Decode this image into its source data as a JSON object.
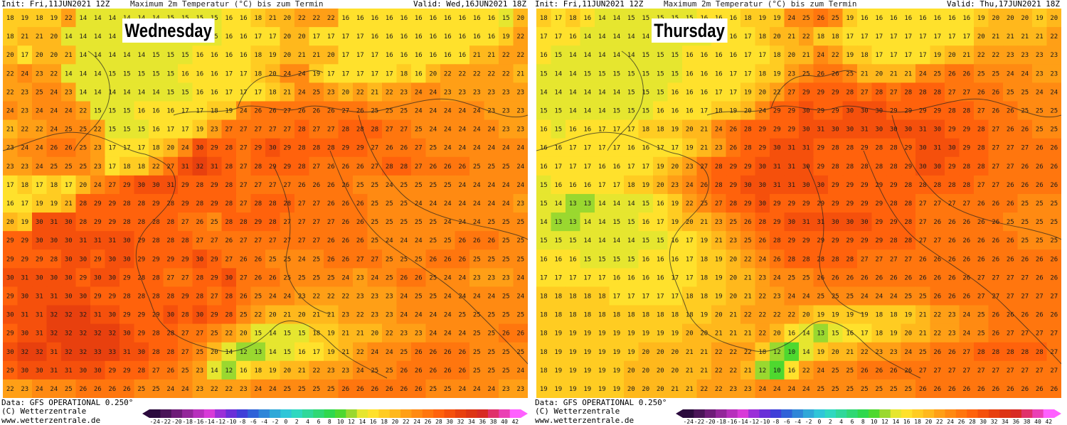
{
  "panels": [
    {
      "init": "Init: Fri,11JUN2021 12Z",
      "title": "Maximum 2m Temperatur (°C) bis zum Termin",
      "valid": "Valid: Wed,16JUN2021 18Z",
      "day_label": "Wednesday",
      "data_line": "Data: GFS OPERATIONAL 0.250°",
      "copyright": "(C) Wetterzentrale",
      "url": "www.wetterzentrale.de"
    },
    {
      "init": "Init: Fri,11JUN2021 12Z",
      "title": "Maximum 2m Temperatur (°C) bis zum Termin",
      "valid": "Valid: Thu,17JUN2021 18Z",
      "day_label": "Thursday",
      "data_line": "Data: GFS OPERATIONAL 0.250°",
      "copyright": "(C) Wetterzentrale",
      "url": "www.wetterzentrale.de"
    }
  ],
  "legend": {
    "ticks": [
      "-24",
      "-22",
      "-20",
      "-18",
      "-16",
      "-14",
      "-12",
      "-10",
      "-8",
      "-6",
      "-4",
      "-2",
      "0",
      "2",
      "4",
      "6",
      "8",
      "10",
      "12",
      "14",
      "16",
      "18",
      "20",
      "22",
      "24",
      "26",
      "28",
      "30",
      "32",
      "34",
      "36",
      "38",
      "40",
      "42"
    ],
    "colors": [
      "#2b0a3d",
      "#4a1458",
      "#6e1c78",
      "#93269a",
      "#b72fbc",
      "#d83ad8",
      "#9b2fd8",
      "#6a2fd8",
      "#3f3fd8",
      "#2f62d8",
      "#2f86d8",
      "#2fa8d8",
      "#2fc6d8",
      "#2fd8c0",
      "#2fd89a",
      "#2fd874",
      "#2fd84e",
      "#4ed82f",
      "#9ad82f",
      "#e6e62f",
      "#ffe12c",
      "#ffcc22",
      "#ffb81c",
      "#ff9f16",
      "#ff8a12",
      "#ff760e",
      "#ff620c",
      "#f5500c",
      "#e8400e",
      "#dd3414",
      "#d82a24",
      "#e0306a",
      "#ea40b4",
      "#ff60ff"
    ]
  },
  "map_data": [
    {
      "rows": [
        "18 19 18 19 22 14 14 14 14 14 14 15 15 15 15 16 16 18 21 20 22 22 22 16 16 16 16 16 16 16 16 16 16 16 15 20",
        "18 21 21 20 14 14 14 14 14 14 14 15 15 15 15 16 16 17 17 20 20 17 17 17 17 16 16 16 16 16 16 16 16 16 19 22",
        "20 17 20 20 21 14 14 14 14 14 15 15 15 16 16 16 16 18 19 20 21 21 20 17 17 17 16 16 16 16 16 16 21 21 22 22",
        "22 24 23 22 14 14 14 15 15 15 15 15 16 16 16 17 17 18 20 24 24 19 17 17 17 17 17 18 16 20 22 22 22 22 22 21",
        "22 23 25 24 23 14 14 14 14 14 14 15 15 16 16 17 17 17 18 21 24 25 23 20 22 21 22 23 24 24 23 23 23 23 23 23",
        "24 23 24 24 24 22 15 15 15 16 16 16 17 17 18 19 24 26 26 27 26 26 26 27 26 25 25 25 24 24 24 24 24 23 23 23",
        "21 22 22 24 25 25 22 15 15 15 16 17 17 19 23 27 27 27 27 27 28 27 27 28 28 28 27 27 25 24 24 24 24 24 23 23",
        "23 24 24 26 26 25 23 17 17 17 18 20 24 30 29 28 27 29 30 29 28 28 28 29 29 27 26 26 27 25 24 24 24 24 24 24",
        "23 23 24 25 25 25 23 17 18 18 22 27 31 32 31 28 27 28 29 29 28 27 26 26 26 27 28 28 27 26 26 26 25 25 25 24",
        "17 18 17 18 17 20 24 27 29 30 30 31 29 28 29 28 27 27 27 27 26 26 26 26 25 25 24 25 25 25 25 24 24 24 24 24",
        "16 17 19 19 21 28 29 29 28 28 29 28 29 28 29 28 27 28 28 28 27 27 26 26 26 25 25 25 24 24 24 24 24 24 24 23",
        "20 19 30 31 30 28 29 29 28 28 28 28 27 26 25 28 28 29 28 27 27 27 27 26 26 25 25 25 25 25 24 24 24 25 25 25",
        "29 29 30 30 30 31 31 31 30 29 28 28 28 27 27 26 27 27 27 27 27 27 26 26 26 25 24 24 24 25 25 26 26 26 25 25",
        "29 29 29 28 30 30 29 30 30 29 29 29 29 30 29 27 26 26 25 25 24 25 26 26 27 27 25 25 25 26 26 26 25 25 25 25",
        "30 31 30 30 30 29 30 30 29 28 28 27 27 28 29 30 27 26 26 25 25 25 25 24 23 24 25 26 26 25 24 24 23 23 23 24",
        "29 30 31 31 30 30 29 29 28 28 28 28 29 28 27 28 26 25 24 24 23 22 22 22 23 23 23 24 25 25 24 24 24 24 25 24",
        "30 31 31 32 32 32 31 30 29 29 29 30 28 30 29 28 25 22 20 21 20 21 21 23 22 23 23 24 24 24 24 25 25 25 25 25",
        "29 30 31 32 32 32 32 32 30 29 28 28 27 27 25 22 20 15 14 15 15 18 19 21 21 20 22 23 23 24 24 24 25 25 26 26",
        "30 32 32 31 32 32 33 33 31 30 28 28 27 25 20 14 12 13 14 15 16 17 19 21 22 24 24 25 26 26 26 26 25 25 25 25",
        "29 30 30 31 31 30 30 29 29 28 27 26 25 23 14 12 16 18 19 20 21 22 23 23 24 25 25 26 26 26 26 26 25 25 25 24",
        "22 23 24 24 25 26 26 26 26 25 25 24 24 23 22 22 23 24 24 25 25 25 25 26 26 26 26 26 26 25 25 24 24 24 23 23"
      ]
    },
    {
      "rows": [
        "18 17 18 16 14 14 15 15 15 15 15 16 16 16 18 19 19 24 25 26 25 19 16 16 16 16 16 16 16 16 19 20 20 20 19 20",
        "17 17 16 14 14 14 14 14 15 15 15 15 16 16 17 18 20 21 22 18 18 17 17 17 17 17 17 17 17 17 20 21 21 21 21 22",
        "16 15 14 14 14 14 14 15 15 15 16 16 16 16 17 17 18 20 21 24 22 19 18 17 17 17 17 19 20 21 22 22 23 23 23 23",
        "15 14 14 15 15 15 15 15 15 15 16 16 16 17 17 18 19 23 25 26 26 25 21 20 21 21 24 25 26 26 25 25 24 24 23 23",
        "14 14 14 14 14 14 15 15 15 16 16 16 17 17 19 20 22 27 29 29 29 28 27 28 27 28 28 28 27 27 26 26 25 25 24 24",
        "15 15 14 14 14 15 15 15 16 16 16 17 18 19 20 24 29 29 30 29 29 30 30 30 29 29 29 29 28 28 27 26 26 25 25 25",
        "16 15 16 16 17 17 17 18 18 19 20 21 24 26 28 29 29 29 30 31 30 30 31 30 30 30 31 30 29 29 28 27 26 26 25 25",
        "16 16 17 17 17 17 16 16 17 17 19 21 23 26 28 29 30 31 31 29 28 28 29 28 28 29 30 31 30 29 28 27 27 27 26 26",
        "16 17 17 17 16 16 17 17 19 20 23 27 28 29 29 30 31 31 30 29 28 28 28 28 28 29 30 30 29 28 28 27 27 26 26 26",
        "15 16 16 16 17 17 18 19 20 23 24 26 28 29 30 30 31 31 30 30 29 29 29 29 29 28 28 28 28 28 27 27 26 26 26 26",
        "15 14 13 13 14 14 14 15 16 19 22 25 27 28 29 30 29 29 29 29 29 29 29 29 28 28 27 27 27 27 26 26 26 25 25 25",
        "14 13 13 14 14 15 15 16 17 19 20 21 23 25 26 28 29 30 31 31 30 30 30 29 29 28 27 26 26 26 26 26 25 25 25 25",
        "15 15 15 14 14 14 14 15 15 16 17 19 21 23 25 26 28 29 29 29 29 29 29 29 28 28 27 27 26 26 26 26 26 25 25 25",
        "16 16 16 15 15 15 15 16 16 16 17 18 19 20 22 24 26 28 28 28 28 28 27 27 27 27 26 26 26 26 26 26 26 26 26 26",
        "17 17 17 17 17 16 16 16 16 17 17 18 19 20 21 23 24 25 25 26 26 26 26 26 26 26 26 26 26 26 27 27 27 27 26 26",
        "18 18 18 18 18 17 17 17 17 17 18 18 19 20 21 22 23 24 24 25 25 25 24 24 24 25 25 26 26 26 27 27 27 27 27 27",
        "18 18 18 18 18 18 18 18 18 18 18 19 20 21 22 22 22 22 20 19 19 19 19 18 18 19 21 22 23 24 25 26 26 26 26 26",
        "18 19 19 19 19 19 19 19 19 19 20 20 21 21 21 22 20 16 14 13 15 16 17 18 19 20 21 22 23 24 25 26 27 27 27 27",
        "18 19 19 19 19 19 19 20 20 20 21 21 22 22 22 18 12 10 14 19 20 21 22 23 23 24 25 26 26 27 28 28 28 28 28 27",
        "18 19 19 19 19 19 20 20 20 20 21 21 22 22 21 12 10 16 22 24 25 25 26 26 26 26 27 27 27 27 27 27 27 27 27 27",
        "19 19 19 19 19 19 20 20 20 21 21 22 22 23 23 24 24 24 24 25 25 25 25 25 25 25 26 26 26 26 26 26 26 26 26 26"
      ]
    }
  ]
}
